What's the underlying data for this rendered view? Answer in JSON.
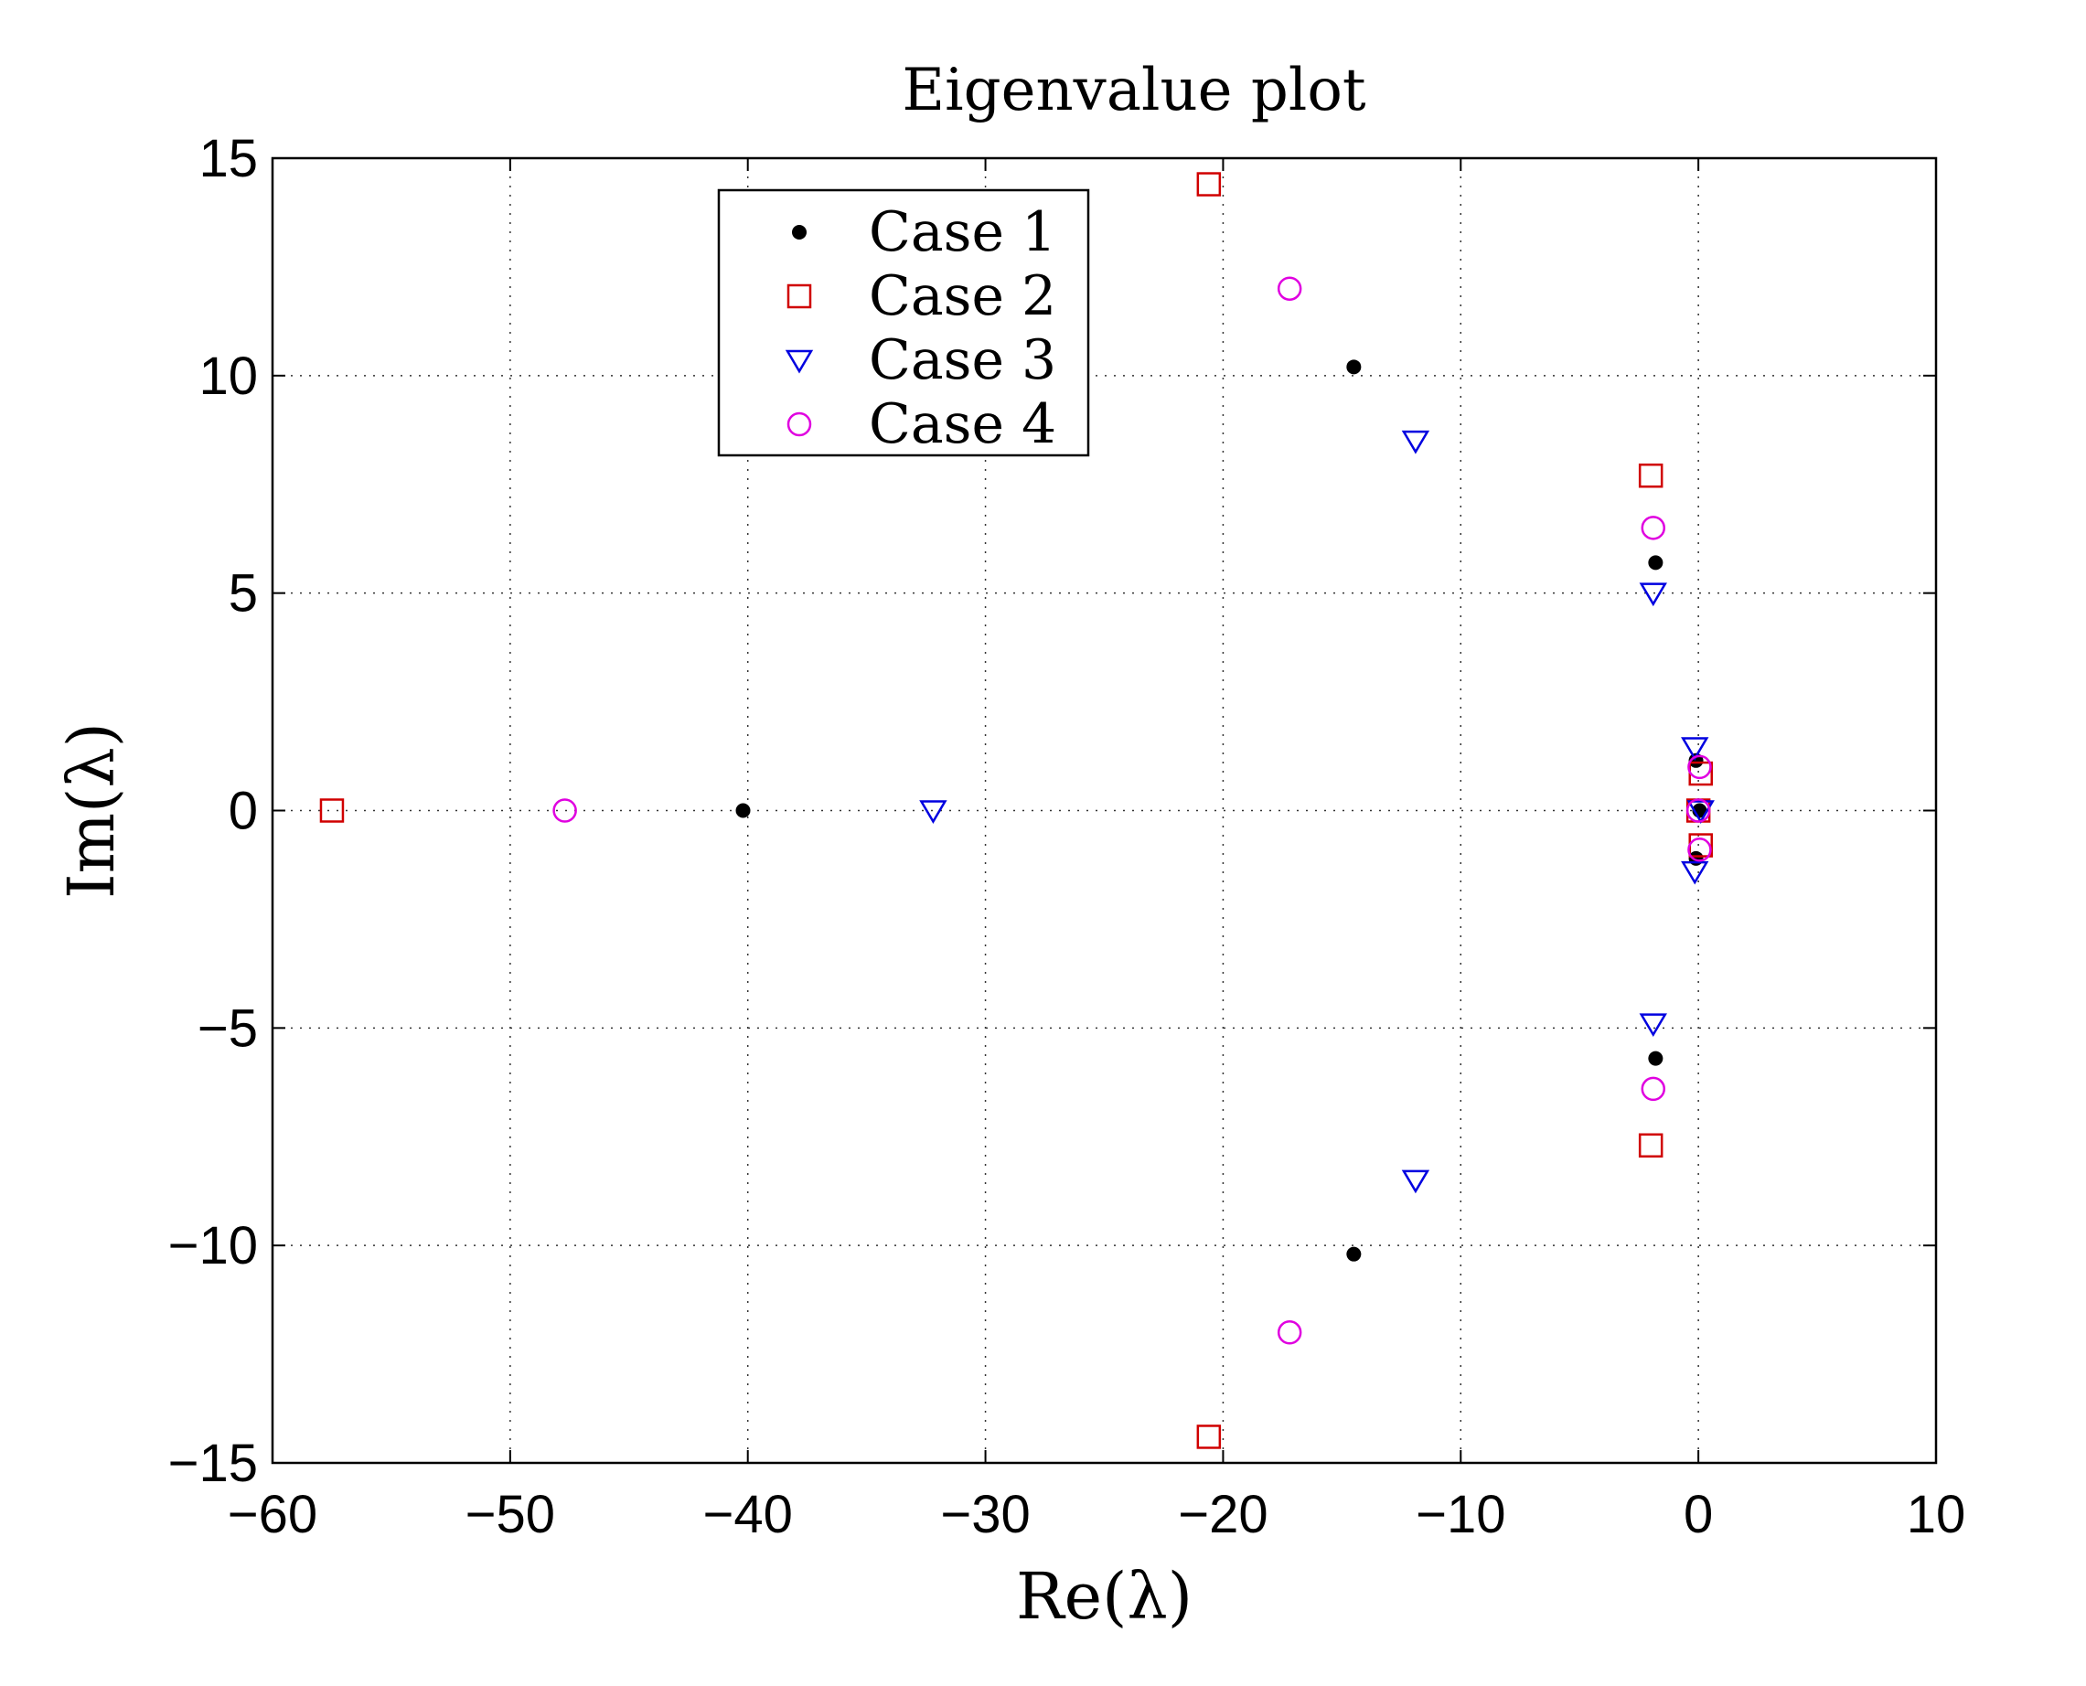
{
  "chart_data": {
    "type": "scatter",
    "title": "Eigenvalue plot",
    "xlabel": "Re(λ)",
    "ylabel": "Im(λ)",
    "xlim": [
      -60,
      10
    ],
    "ylim": [
      -15,
      15
    ],
    "xticks": [
      -60,
      -50,
      -40,
      -30,
      -20,
      -10,
      0,
      10
    ],
    "yticks": [
      -15,
      -10,
      -5,
      0,
      5,
      10,
      15
    ],
    "xtick_labels": [
      "−60",
      "−50",
      "−40",
      "−30",
      "−20",
      "−10",
      "0",
      "10"
    ],
    "ytick_labels": [
      "−15",
      "−10",
      "−5",
      "0",
      "5",
      "10",
      "15"
    ],
    "grid": true,
    "legend_position": "top-left",
    "series": [
      {
        "name": "Case 1",
        "marker": "dot",
        "color": "#000000",
        "points": [
          [
            -40.2,
            0
          ],
          [
            -14.5,
            10.2
          ],
          [
            -14.5,
            -10.2
          ],
          [
            -1.8,
            5.7
          ],
          [
            -1.8,
            -5.7
          ],
          [
            -0.1,
            1.15
          ],
          [
            -0.1,
            -1.1
          ],
          [
            0.05,
            0
          ]
        ]
      },
      {
        "name": "Case 2",
        "marker": "square",
        "color": "#d00000",
        "points": [
          [
            -57.5,
            0
          ],
          [
            -20.6,
            14.4
          ],
          [
            -20.6,
            -14.4
          ],
          [
            -2.0,
            7.7
          ],
          [
            -2.0,
            -7.7
          ],
          [
            0.1,
            0.85
          ],
          [
            0.1,
            -0.8
          ],
          [
            0.0,
            0
          ]
        ]
      },
      {
        "name": "Case 3",
        "marker": "triangle-down",
        "color": "#0000e0",
        "points": [
          [
            -32.2,
            0
          ],
          [
            -11.9,
            8.5
          ],
          [
            -11.9,
            -8.5
          ],
          [
            -1.9,
            5.0
          ],
          [
            -1.9,
            -4.9
          ],
          [
            -0.15,
            1.45
          ],
          [
            -0.15,
            -1.4
          ],
          [
            0.1,
            0
          ]
        ]
      },
      {
        "name": "Case 4",
        "marker": "circle",
        "color": "#e000e0",
        "points": [
          [
            -47.7,
            0
          ],
          [
            -17.2,
            12.0
          ],
          [
            -17.2,
            -12.0
          ],
          [
            -1.9,
            6.5
          ],
          [
            -1.9,
            -6.4
          ],
          [
            0.05,
            1.0
          ],
          [
            0.05,
            -0.9
          ],
          [
            0.0,
            0
          ]
        ]
      }
    ]
  }
}
